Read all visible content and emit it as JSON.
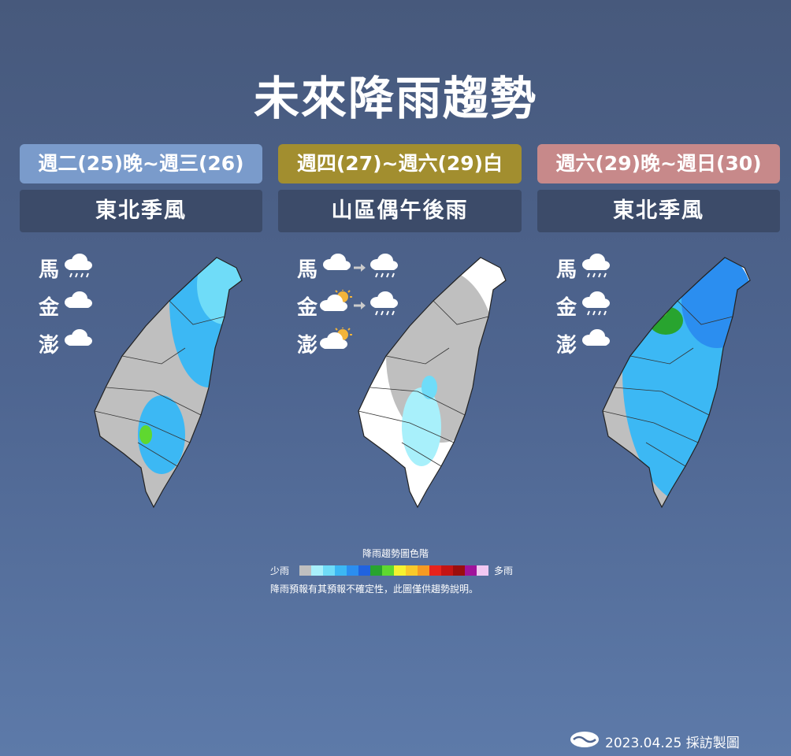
{
  "title": "未來降雨趨勢",
  "panels": [
    {
      "period": "週二(25)晚~週三(26)",
      "summary": "東北季風",
      "islands": [
        "馬",
        "金",
        "澎"
      ]
    },
    {
      "period": "週四(27)~週六(29)白",
      "summary": "山區偶午後雨",
      "islands": [
        "馬",
        "金",
        "澎"
      ]
    },
    {
      "period": "週六(29)晚~週日(30)",
      "summary": "東北季風",
      "islands": [
        "馬",
        "金",
        "澎"
      ]
    }
  ],
  "legend": {
    "title": "降雨趨勢圖色階",
    "low": "少雨",
    "high": "多雨",
    "note": "降雨預報有其預報不確定性，此圖僅供趨勢說明。"
  },
  "footer": "2023.04.25 採訪製圖"
}
